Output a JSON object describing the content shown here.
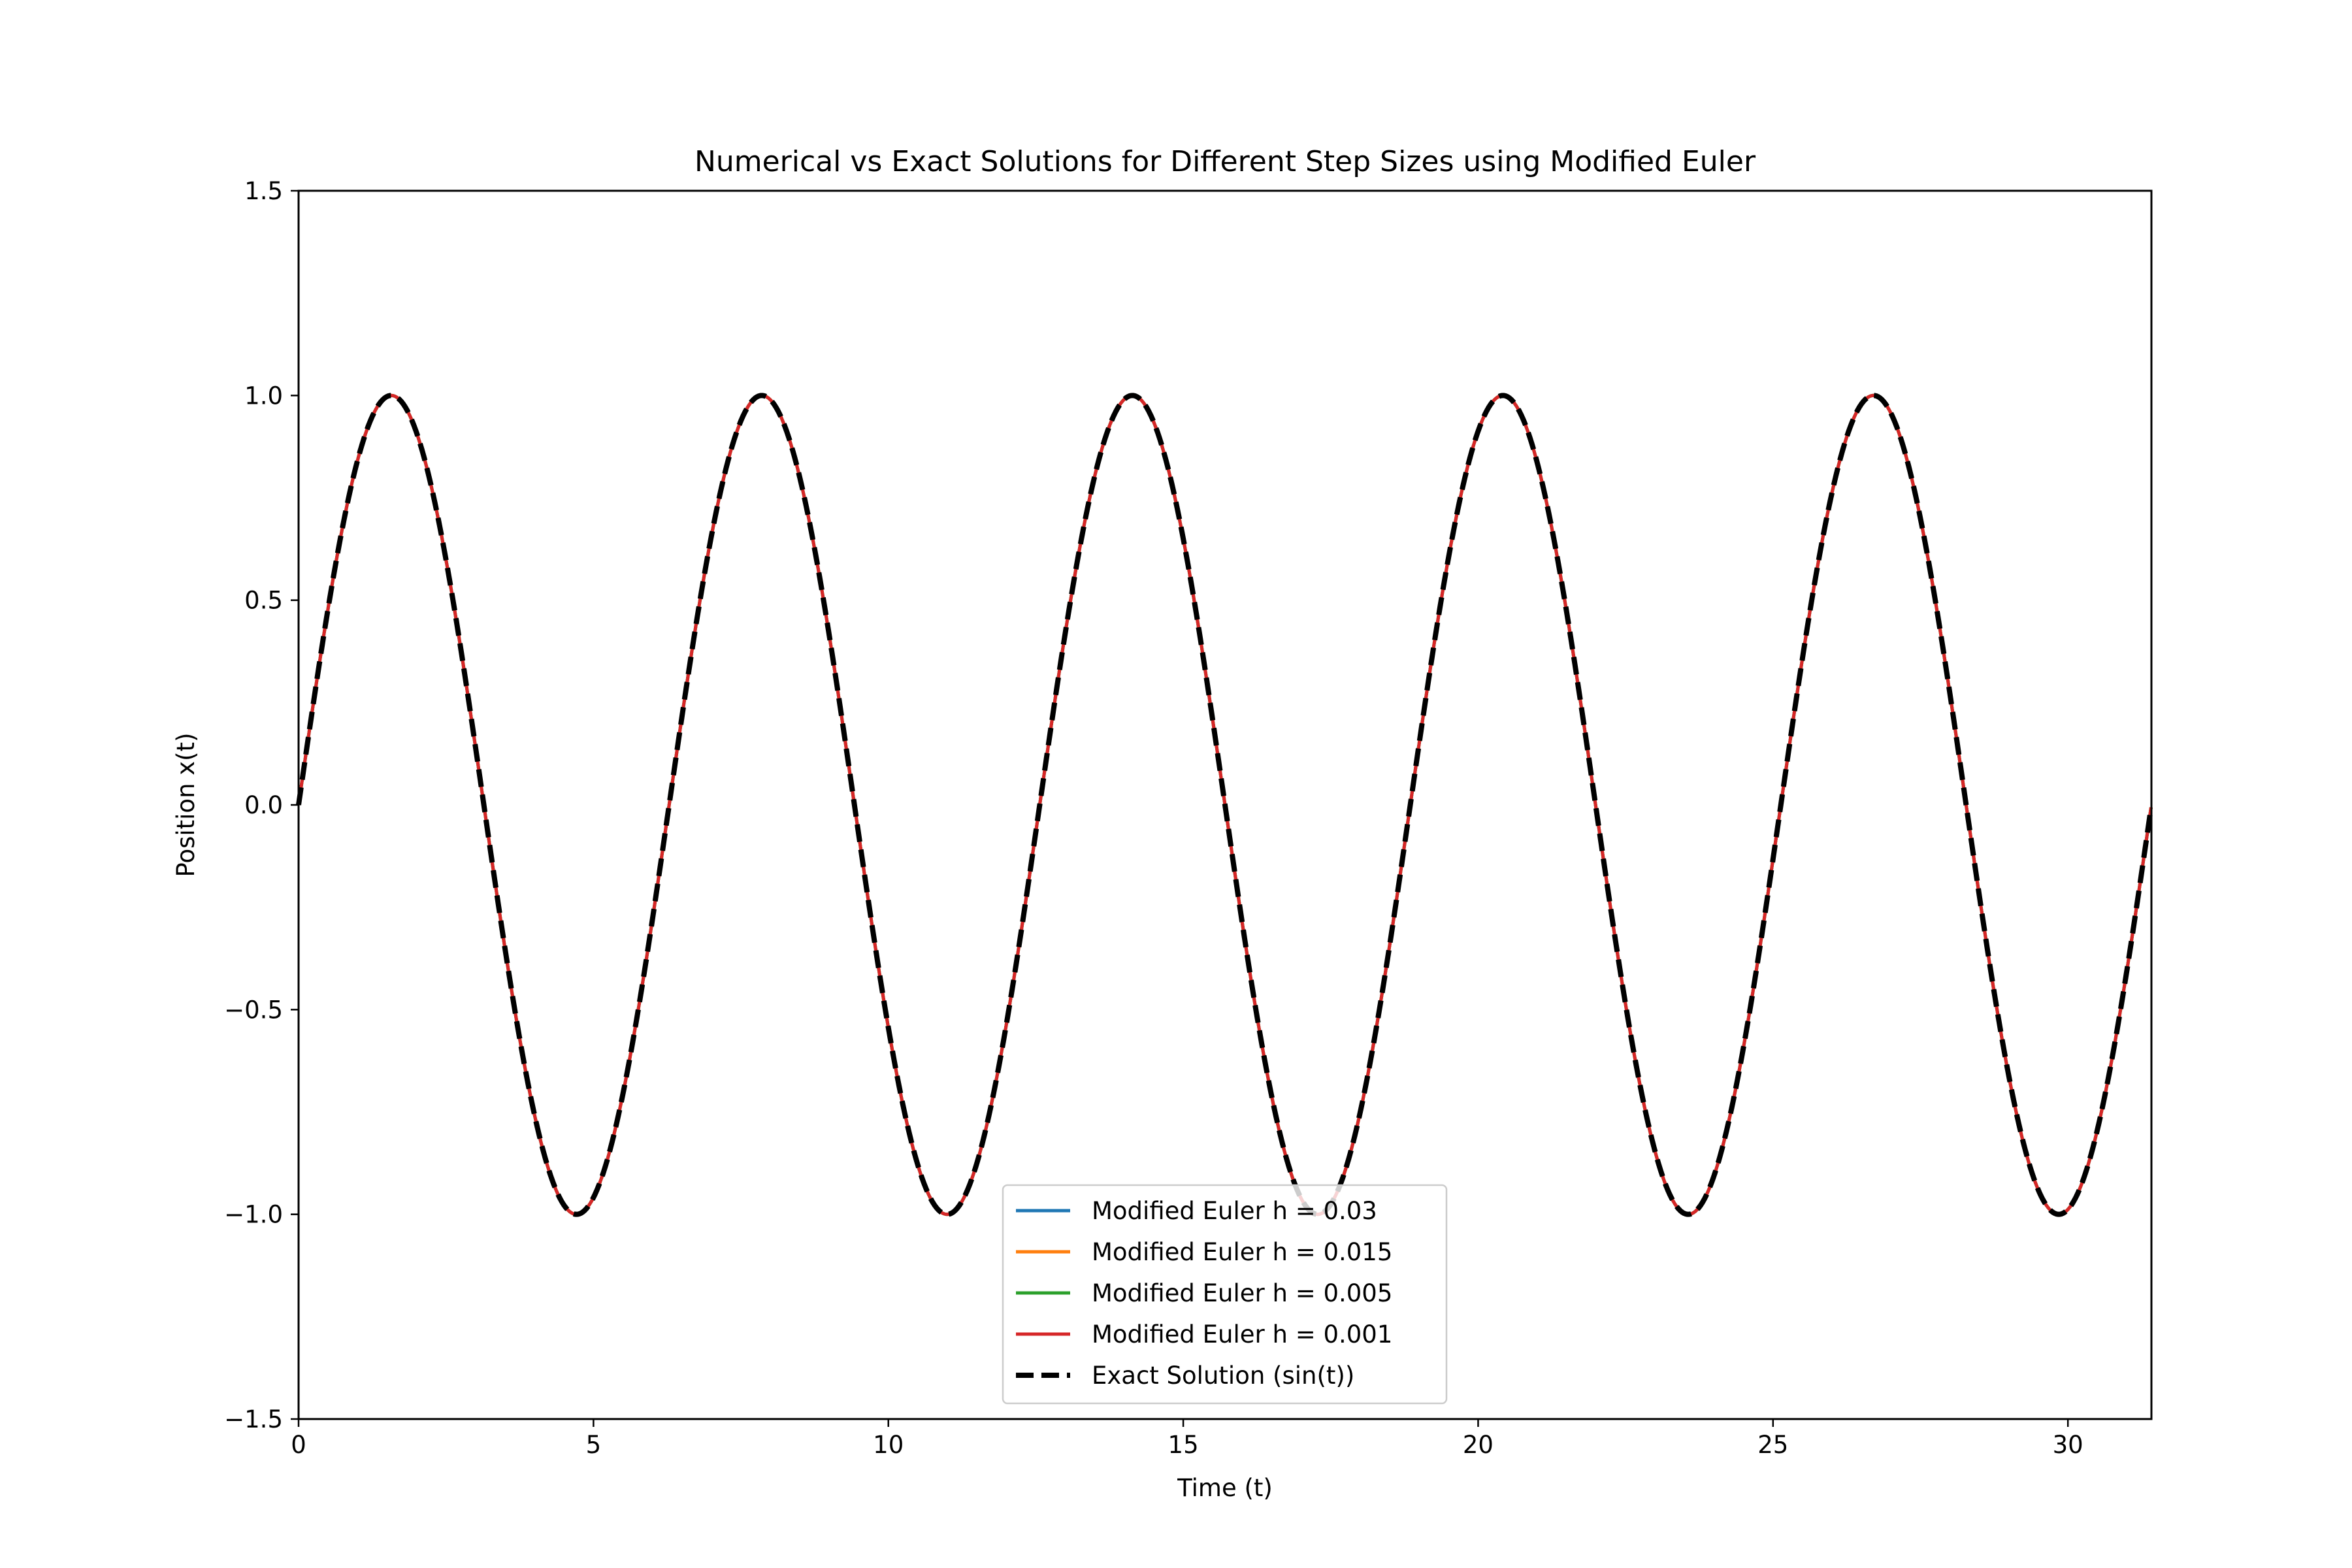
{
  "chart_data": {
    "type": "line",
    "title": "Numerical vs Exact Solutions for Different Step Sizes using Modified Euler",
    "xlabel": "Time (t)",
    "ylabel": "Position x(t)",
    "xlim": [
      0,
      31.416
    ],
    "ylim": [
      -1.5,
      1.5
    ],
    "xticks": [
      0,
      5,
      10,
      15,
      20,
      25,
      30
    ],
    "xtick_labels": [
      "0",
      "5",
      "10",
      "15",
      "20",
      "25",
      "30"
    ],
    "yticks": [
      1.5,
      1.0,
      0.5,
      0.0,
      -0.5,
      -1.0,
      -1.5
    ],
    "ytick_labels": [
      "1.5",
      "1.0",
      "0.5",
      "0.0",
      "−0.5",
      "−1.0",
      "−1.5"
    ],
    "grid": false,
    "legend_position": "lower center",
    "function": "sin(t)",
    "series": [
      {
        "name": "Modified Euler h = 0.03",
        "h": 0.03,
        "color": "#1f77b4",
        "style": "solid"
      },
      {
        "name": "Modified Euler h = 0.015",
        "h": 0.015,
        "color": "#ff7f0e",
        "style": "solid"
      },
      {
        "name": "Modified Euler h = 0.005",
        "h": 0.005,
        "color": "#2ca02c",
        "style": "solid"
      },
      {
        "name": "Modified Euler h = 0.001",
        "h": 0.001,
        "color": "#d62728",
        "style": "solid"
      },
      {
        "name": "Exact Solution (sin(t))",
        "color": "#000000",
        "style": "dashed"
      }
    ]
  }
}
